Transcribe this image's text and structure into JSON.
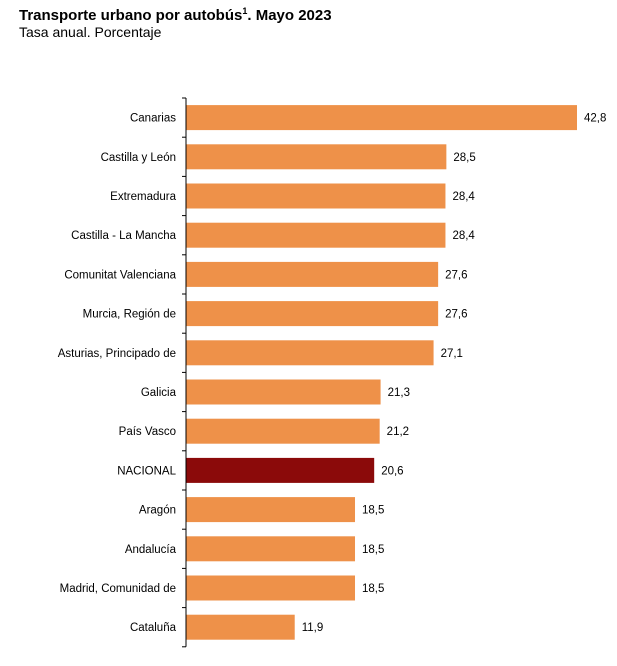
{
  "title_main": "Transporte urbano por autobús",
  "title_sup": "1",
  "title_rest": ". Mayo 2023",
  "subtitle": "Tasa anual. Porcentaje",
  "colors": {
    "bar": "#EE9149",
    "highlight": "#8B0A0A",
    "axis": "#000000"
  },
  "chart_data": {
    "type": "bar",
    "orientation": "horizontal",
    "title": "Transporte urbano por autobús¹. Mayo 2023",
    "subtitle": "Tasa anual. Porcentaje",
    "categories": [
      "Canarias",
      "Castilla y León",
      "Extremadura",
      "Castilla - La Mancha",
      "Comunitat Valenciana",
      "Murcia, Región de",
      "Asturias, Principado de",
      "Galicia",
      "País Vasco",
      "NACIONAL",
      "Aragón",
      "Andalucía",
      "Madrid, Comunidad de",
      "Cataluña"
    ],
    "values": [
      42.8,
      28.5,
      28.4,
      28.4,
      27.6,
      27.6,
      27.1,
      21.3,
      21.2,
      20.6,
      18.5,
      18.5,
      18.5,
      11.9
    ],
    "labels": [
      "42,8",
      "28,5",
      "28,4",
      "28,4",
      "27,6",
      "27,6",
      "27,1",
      "21,3",
      "21,2",
      "20,6",
      "18,5",
      "18,5",
      "18,5",
      "11,9"
    ],
    "highlight": "NACIONAL",
    "xlim": [
      0,
      42.8
    ],
    "grid": false,
    "legend": "none"
  }
}
